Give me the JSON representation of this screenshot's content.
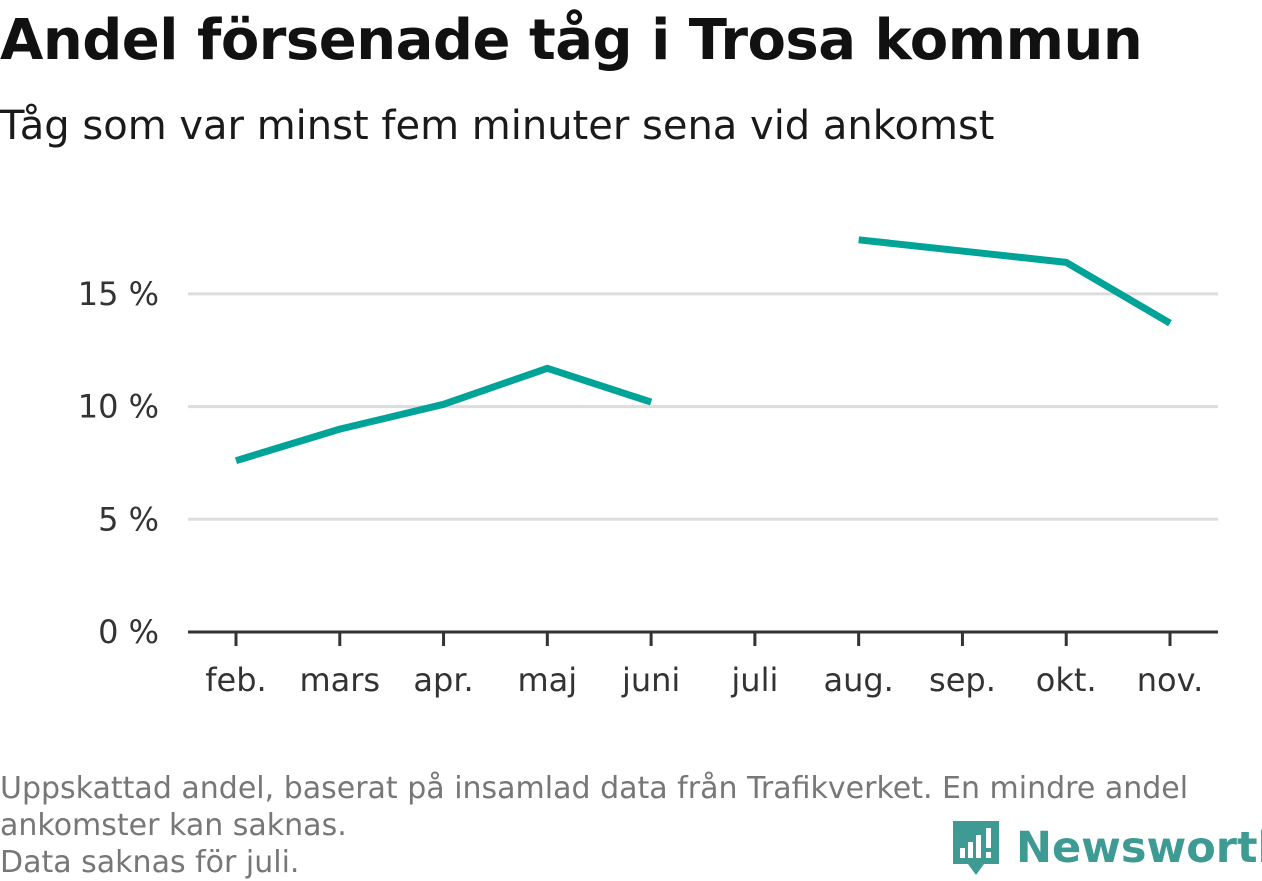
{
  "title": "Andel försenade tåg i Trosa kommun",
  "subtitle": "Tåg som var minst fem minuter sena vid ankomst",
  "footnote": {
    "line1": "Uppskattad andel, baserat på insamlad data från Trafikverket. En mindre andel",
    "line2": "ankomster kan saknas.",
    "line3": "Data saknas för juli."
  },
  "brand": {
    "name": "Newsworthy",
    "icon": "chart-speech-bubble-icon"
  },
  "colors": {
    "line": "#00a398",
    "grid": "#dddddd",
    "axis": "#333333",
    "brand": "#3d9b93",
    "text": "#333333"
  },
  "chart_data": {
    "type": "line",
    "categories": [
      "feb.",
      "mars",
      "apr.",
      "maj",
      "juni",
      "juli",
      "aug.",
      "sep.",
      "okt.",
      "nov."
    ],
    "series": [
      {
        "values": [
          7.6,
          9.0,
          10.1,
          11.7,
          10.2,
          null,
          17.4,
          16.9,
          16.4,
          13.7
        ]
      }
    ],
    "yticks": [
      {
        "value": 0,
        "label": "0 %"
      },
      {
        "value": 5,
        "label": "5 %"
      },
      {
        "value": 10,
        "label": "10 %"
      },
      {
        "value": 15,
        "label": "15 %"
      }
    ],
    "ylim": [
      0,
      18.5
    ],
    "grid": true,
    "legend": false
  }
}
